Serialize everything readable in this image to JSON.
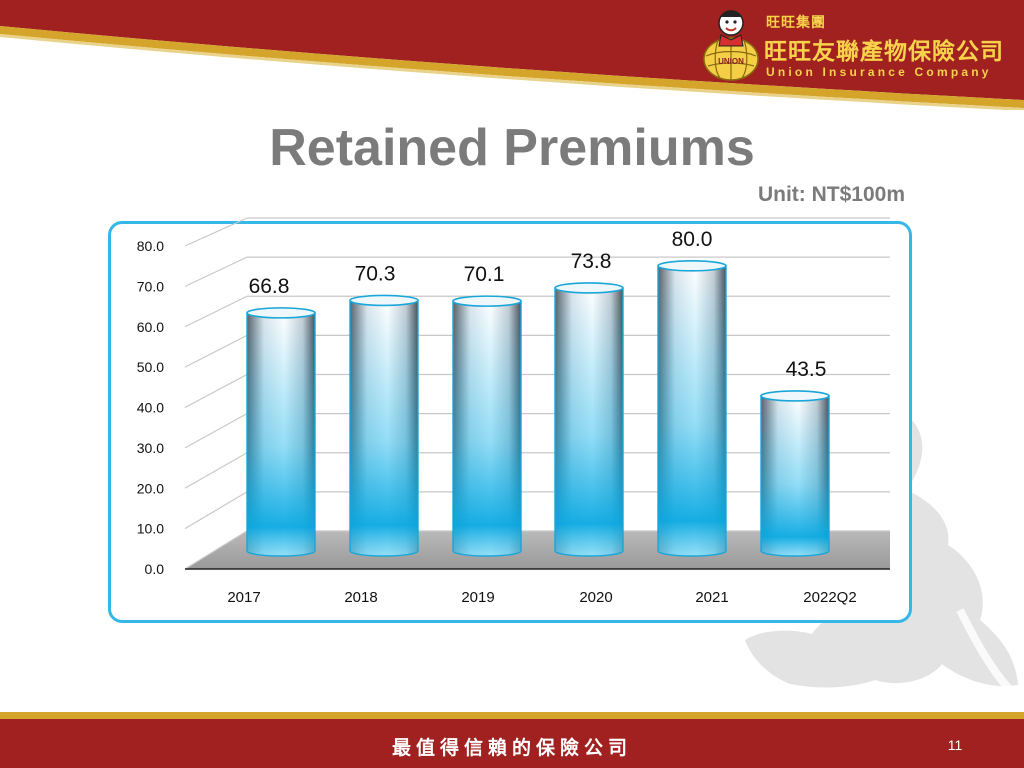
{
  "header": {
    "logo_group_text": "旺旺集團",
    "logo_company_cn": "旺旺友聯產物保險公司",
    "logo_company_en": "Union Insurance Company",
    "logo_badge_text": "UNION",
    "brand_red": "#a0211f",
    "brand_gold": "#d4a52a"
  },
  "slide": {
    "title": "Retained Premiums",
    "unit_label": "Unit: NT$100m"
  },
  "chart_data": {
    "type": "bar",
    "categories": [
      "2017",
      "2018",
      "2019",
      "2020",
      "2021",
      "2022Q2"
    ],
    "values": [
      66.8,
      70.3,
      70.1,
      73.8,
      80.0,
      43.5
    ],
    "data_labels": [
      "66.8",
      "70.3",
      "70.1",
      "73.8",
      "80.0",
      "43.5"
    ],
    "y_ticks": [
      "0.0",
      "10.0",
      "20.0",
      "30.0",
      "40.0",
      "50.0",
      "60.0",
      "70.0",
      "80.0"
    ],
    "ylim": [
      0,
      80
    ],
    "grid": true,
    "style": "3d-cylinder",
    "bar_color": "#12b4ea",
    "frame_color": "#35b8e8"
  },
  "footer": {
    "slogan": "最值得信賴的保險公司",
    "page_number": "11",
    "band_color": "#a0211f",
    "gold_color": "#d4a52a"
  }
}
